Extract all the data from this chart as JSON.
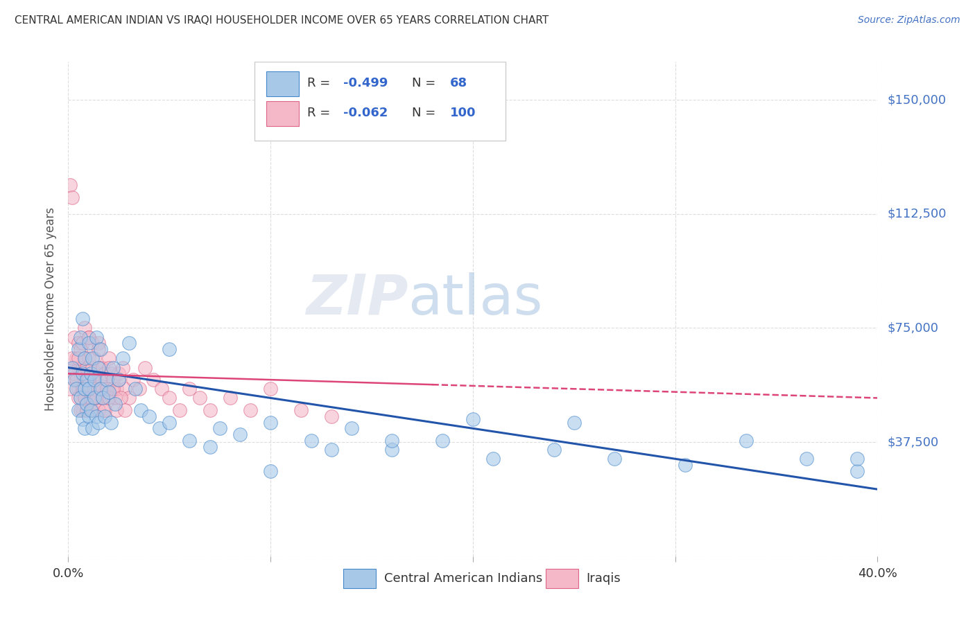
{
  "title": "CENTRAL AMERICAN INDIAN VS IRAQI HOUSEHOLDER INCOME OVER 65 YEARS CORRELATION CHART",
  "source": "Source: ZipAtlas.com",
  "ylabel": "Householder Income Over 65 years",
  "xlim": [
    0.0,
    0.4
  ],
  "ylim": [
    0,
    162500
  ],
  "yticks": [
    0,
    37500,
    75000,
    112500,
    150000
  ],
  "ytick_labels": [
    "",
    "$37,500",
    "$75,000",
    "$112,500",
    "$150,000"
  ],
  "xticks": [
    0.0,
    0.1,
    0.2,
    0.3,
    0.4
  ],
  "blue_color": "#a8c8e8",
  "pink_color": "#f4b8c8",
  "blue_edge_color": "#4488cc",
  "pink_edge_color": "#dd6688",
  "blue_line_color": "#2255aa",
  "pink_line_color": "#dd4477",
  "watermark_color": "#ccddf0",
  "title_color": "#333333",
  "source_color": "#4472c4",
  "axis_label_color": "#555555",
  "tick_color": "#4472c4",
  "grid_color": "#dddddd",
  "blue_scatter_x": [
    0.002,
    0.003,
    0.004,
    0.005,
    0.005,
    0.006,
    0.006,
    0.007,
    0.007,
    0.007,
    0.008,
    0.008,
    0.008,
    0.009,
    0.009,
    0.01,
    0.01,
    0.01,
    0.011,
    0.011,
    0.012,
    0.012,
    0.013,
    0.013,
    0.014,
    0.014,
    0.015,
    0.015,
    0.016,
    0.016,
    0.017,
    0.018,
    0.019,
    0.02,
    0.021,
    0.022,
    0.023,
    0.025,
    0.027,
    0.03,
    0.033,
    0.036,
    0.04,
    0.045,
    0.05,
    0.06,
    0.07,
    0.085,
    0.1,
    0.12,
    0.14,
    0.16,
    0.185,
    0.21,
    0.24,
    0.27,
    0.305,
    0.335,
    0.365,
    0.39,
    0.05,
    0.075,
    0.1,
    0.13,
    0.16,
    0.2,
    0.25,
    0.39
  ],
  "blue_scatter_y": [
    62000,
    58000,
    55000,
    68000,
    48000,
    72000,
    52000,
    60000,
    45000,
    78000,
    55000,
    65000,
    42000,
    58000,
    50000,
    70000,
    46000,
    55000,
    60000,
    48000,
    65000,
    42000,
    58000,
    52000,
    72000,
    46000,
    62000,
    44000,
    55000,
    68000,
    52000,
    46000,
    58000,
    54000,
    44000,
    62000,
    50000,
    58000,
    65000,
    70000,
    55000,
    48000,
    46000,
    42000,
    44000,
    38000,
    36000,
    40000,
    44000,
    38000,
    42000,
    35000,
    38000,
    32000,
    35000,
    32000,
    30000,
    38000,
    32000,
    28000,
    68000,
    42000,
    28000,
    35000,
    38000,
    45000,
    44000,
    32000
  ],
  "pink_scatter_x": [
    0.001,
    0.002,
    0.003,
    0.003,
    0.004,
    0.004,
    0.005,
    0.005,
    0.005,
    0.006,
    0.006,
    0.006,
    0.007,
    0.007,
    0.007,
    0.007,
    0.008,
    0.008,
    0.008,
    0.008,
    0.009,
    0.009,
    0.009,
    0.01,
    0.01,
    0.01,
    0.01,
    0.011,
    0.011,
    0.012,
    0.012,
    0.012,
    0.013,
    0.013,
    0.014,
    0.014,
    0.015,
    0.015,
    0.015,
    0.016,
    0.016,
    0.017,
    0.017,
    0.018,
    0.018,
    0.019,
    0.02,
    0.02,
    0.021,
    0.022,
    0.023,
    0.024,
    0.025,
    0.027,
    0.028,
    0.03,
    0.032,
    0.035,
    0.038,
    0.042,
    0.046,
    0.05,
    0.055,
    0.06,
    0.065,
    0.07,
    0.08,
    0.09,
    0.1,
    0.115,
    0.13,
    0.001,
    0.002,
    0.003,
    0.004,
    0.005,
    0.006,
    0.007,
    0.008,
    0.009,
    0.01,
    0.011,
    0.012,
    0.013,
    0.014,
    0.015,
    0.016,
    0.017,
    0.018,
    0.019,
    0.02,
    0.022,
    0.024,
    0.026,
    0.028,
    0.015,
    0.02,
    0.025,
    0.01,
    0.005
  ],
  "pink_scatter_y": [
    122000,
    118000,
    62000,
    72000,
    58000,
    65000,
    55000,
    62000,
    70000,
    52000,
    60000,
    68000,
    48000,
    55000,
    62000,
    70000,
    58000,
    52000,
    65000,
    75000,
    48000,
    55000,
    62000,
    58000,
    65000,
    52000,
    72000,
    48000,
    55000,
    62000,
    70000,
    52000,
    58000,
    65000,
    52000,
    60000,
    55000,
    62000,
    70000,
    58000,
    52000,
    62000,
    55000,
    48000,
    60000,
    52000,
    55000,
    65000,
    60000,
    58000,
    52000,
    55000,
    60000,
    62000,
    55000,
    52000,
    58000,
    55000,
    62000,
    58000,
    55000,
    52000,
    48000,
    55000,
    52000,
    48000,
    52000,
    48000,
    55000,
    48000,
    46000,
    55000,
    65000,
    60000,
    58000,
    52000,
    48000,
    55000,
    52000,
    48000,
    58000,
    52000,
    48000,
    55000,
    52000,
    48000,
    55000,
    52000,
    48000,
    55000,
    52000,
    55000,
    48000,
    52000,
    48000,
    68000,
    62000,
    58000,
    72000,
    65000
  ],
  "blue_line_x0": 0.0,
  "blue_line_y0": 62000,
  "blue_line_x1": 0.4,
  "blue_line_y1": 22000,
  "pink_line_x0": 0.0,
  "pink_line_y0": 60000,
  "pink_line_x1": 0.4,
  "pink_line_y1": 52000
}
